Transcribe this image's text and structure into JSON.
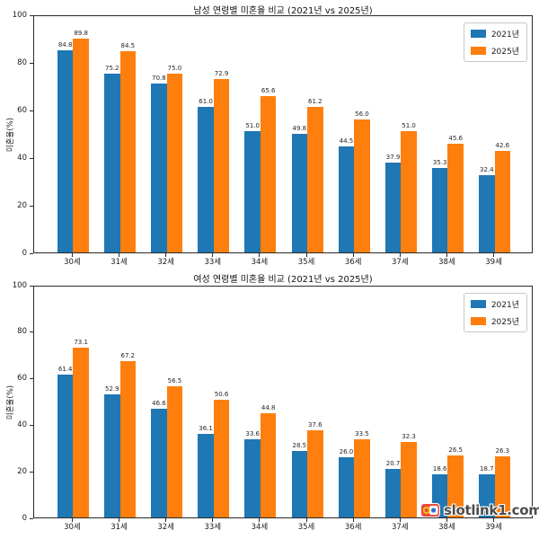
{
  "ui": {
    "background_color": "#ffffff",
    "spine_color": "#2a2a2a"
  },
  "watermark": {
    "text": "slotlink1.com",
    "text_color": "#4d4d4d",
    "logo_colors": {
      "frame": "#ee4b3e",
      "inner": "#fdfdfd",
      "ring": "#f6c60e",
      "dot": "#2f6fd4"
    }
  },
  "chart_data": [
    {
      "type": "bar",
      "title": "남성 연령별 미혼율 비교 (2021년 vs 2025년)",
      "categories": [
        "30세",
        "31세",
        "32세",
        "33세",
        "34세",
        "35세",
        "36세",
        "37세",
        "38세",
        "39세"
      ],
      "series": [
        {
          "name": "2021년",
          "color": "#1f77b4",
          "values": [
            84.8,
            75.2,
            70.8,
            61.0,
            51.0,
            49.8,
            44.5,
            37.9,
            35.3,
            32.4
          ]
        },
        {
          "name": "2025년",
          "color": "#ff7f0e",
          "values": [
            89.8,
            84.5,
            75.0,
            72.9,
            65.6,
            61.2,
            56.0,
            51.0,
            45.6,
            42.6
          ]
        }
      ],
      "xlabel": "",
      "ylabel": "미혼율(%)",
      "ylim": [
        0,
        100
      ],
      "yticks": [
        0,
        20,
        40,
        60,
        80,
        100
      ],
      "bar_value_labels": true,
      "grid": false,
      "legend_position": "upper right"
    },
    {
      "type": "bar",
      "title": "여성 연령별 미혼율 비교 (2021년 vs 2025년)",
      "categories": [
        "30세",
        "31세",
        "32세",
        "33세",
        "34세",
        "35세",
        "36세",
        "37세",
        "38세",
        "39세"
      ],
      "series": [
        {
          "name": "2021년",
          "color": "#1f77b4",
          "values": [
            61.4,
            52.9,
            46.6,
            36.1,
            33.6,
            28.5,
            26.0,
            20.7,
            18.6,
            18.7
          ]
        },
        {
          "name": "2025년",
          "color": "#ff7f0e",
          "values": [
            73.1,
            67.2,
            56.5,
            50.6,
            44.8,
            37.6,
            33.5,
            32.3,
            26.5,
            26.3
          ]
        }
      ],
      "xlabel": "",
      "ylabel": "미혼율(%)",
      "ylim": [
        0,
        100
      ],
      "yticks": [
        0,
        20,
        40,
        60,
        80,
        100
      ],
      "bar_value_labels": true,
      "grid": false,
      "legend_position": "upper right"
    }
  ]
}
